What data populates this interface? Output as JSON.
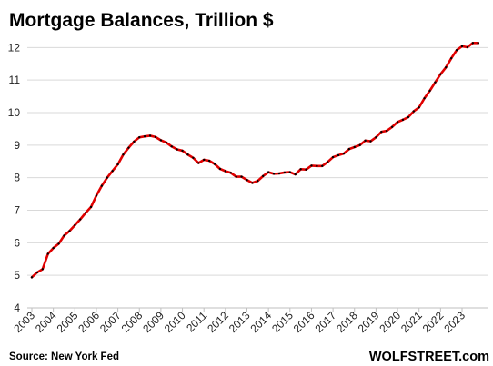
{
  "chart_data": {
    "type": "line",
    "title": "Mortgage Balances, Trillion $",
    "xlabel": "",
    "ylabel": "",
    "ylim": [
      4,
      12.4
    ],
    "yticks": [
      4,
      5,
      6,
      7,
      8,
      9,
      10,
      11,
      12
    ],
    "xlim": [
      2003,
      2023.9
    ],
    "xticks": [
      "2003",
      "2004",
      "2005",
      "2006",
      "2007",
      "2008",
      "2009",
      "2010",
      "2011",
      "2012",
      "2013",
      "2014",
      "2015",
      "2016",
      "2017",
      "2018",
      "2019",
      "2020",
      "2021",
      "2022",
      "2023"
    ],
    "grid": true,
    "series": [
      {
        "line_color": "#e00000",
        "marker_color": "#000000",
        "x": [
          2003.0,
          2003.25,
          2003.5,
          2003.75,
          2004.0,
          2004.25,
          2004.5,
          2004.75,
          2005.0,
          2005.25,
          2005.5,
          2005.75,
          2006.0,
          2006.25,
          2006.5,
          2006.75,
          2007.0,
          2007.25,
          2007.5,
          2007.75,
          2008.0,
          2008.25,
          2008.5,
          2008.75,
          2009.0,
          2009.25,
          2009.5,
          2009.75,
          2010.0,
          2010.25,
          2010.5,
          2010.75,
          2011.0,
          2011.25,
          2011.5,
          2011.75,
          2012.0,
          2012.25,
          2012.5,
          2012.75,
          2013.0,
          2013.25,
          2013.5,
          2013.75,
          2014.0,
          2014.25,
          2014.5,
          2014.75,
          2015.0,
          2015.25,
          2015.5,
          2015.75,
          2016.0,
          2016.25,
          2016.5,
          2016.75,
          2017.0,
          2017.25,
          2017.5,
          2017.75,
          2018.0,
          2018.25,
          2018.5,
          2018.75,
          2019.0,
          2019.25,
          2019.5,
          2019.75,
          2020.0,
          2020.25,
          2020.5,
          2020.75,
          2021.0,
          2021.25,
          2021.5,
          2021.75,
          2022.0,
          2022.25,
          2022.5,
          2022.75,
          2023.0,
          2023.25,
          2023.5,
          2023.75
        ],
        "values": [
          4.94,
          5.09,
          5.19,
          5.66,
          5.84,
          5.97,
          6.22,
          6.36,
          6.54,
          6.72,
          6.92,
          7.1,
          7.45,
          7.75,
          8.0,
          8.21,
          8.41,
          8.71,
          8.92,
          9.11,
          9.24,
          9.27,
          9.29,
          9.25,
          9.15,
          9.08,
          8.96,
          8.87,
          8.83,
          8.71,
          8.61,
          8.45,
          8.55,
          8.52,
          8.42,
          8.27,
          8.2,
          8.15,
          8.03,
          8.03,
          7.93,
          7.84,
          7.9,
          8.05,
          8.17,
          8.12,
          8.13,
          8.16,
          8.17,
          8.1,
          8.26,
          8.25,
          8.37,
          8.36,
          8.36,
          8.48,
          8.63,
          8.69,
          8.74,
          8.88,
          8.94,
          9.0,
          9.14,
          9.12,
          9.24,
          9.41,
          9.44,
          9.56,
          9.71,
          9.78,
          9.86,
          10.04,
          10.16,
          10.44,
          10.67,
          10.93,
          11.18,
          11.39,
          11.67,
          11.92,
          12.04,
          12.01,
          12.14,
          12.14
        ]
      }
    ]
  },
  "footer": {
    "source": "Source: New York Fed",
    "brand": "WOLFSTREET.com"
  }
}
